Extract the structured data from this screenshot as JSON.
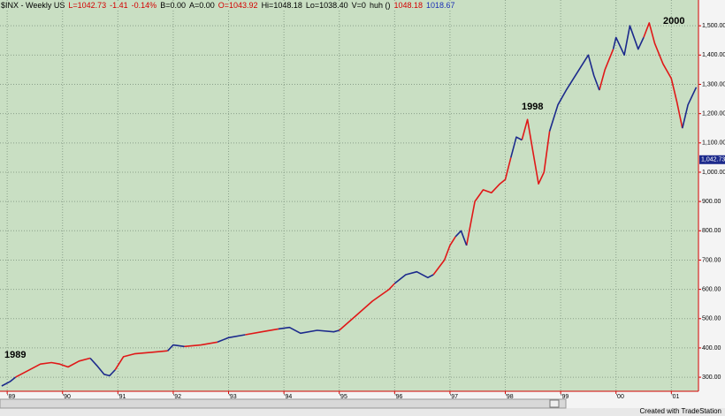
{
  "header": [
    "$INX - Weekly  US",
    "L=1042.73",
    "-1.41",
    "-0.14%",
    "B=0.00",
    "A=0.00",
    "O=1043.92",
    "Hi=1048.18",
    "Lo=1038.40",
    "V=0",
    "huh ()",
    "1048.18",
    "1018.67"
  ],
  "footer": "Created with TradeStation",
  "chart_data": {
    "type": "line",
    "annotations": [
      "1989",
      "1998",
      "2000"
    ],
    "x": [
      1988.9,
      1989.05,
      1989.15,
      1989.4,
      1989.6,
      1989.8,
      1989.95,
      1990.1,
      1990.3,
      1990.5,
      1990.62,
      1990.75,
      1990.85,
      1990.95,
      1991.1,
      1991.3,
      1991.6,
      1991.9,
      1992.0,
      1992.2,
      1992.5,
      1992.8,
      1993.0,
      1993.3,
      1993.6,
      1993.9,
      1994.1,
      1994.3,
      1994.6,
      1994.9,
      1995.0,
      1995.3,
      1995.6,
      1995.9,
      1996.0,
      1996.2,
      1996.4,
      1996.6,
      1996.7,
      1996.9,
      1997.0,
      1997.1,
      1997.2,
      1997.3,
      1997.45,
      1997.6,
      1997.75,
      1997.9,
      1998.0,
      1998.1,
      1998.2,
      1998.3,
      1998.4,
      1998.5,
      1998.6,
      1998.7,
      1998.8,
      1998.95,
      1999.1,
      1999.3,
      1999.5,
      1999.6,
      1999.7,
      1999.8,
      1999.95,
      2000.0,
      2000.15,
      2000.25,
      2000.4,
      2000.5,
      2000.6,
      2000.7,
      2000.85,
      2001.0,
      2001.1,
      2001.2,
      2001.3,
      2001.45
    ],
    "series": [
      {
        "color": "#e01818",
        "values": [
          null,
          null,
          300,
          325,
          345,
          350,
          345,
          335,
          355,
          365,
          null,
          null,
          null,
          325,
          370,
          380,
          385,
          390,
          null,
          405,
          410,
          420,
          null,
          445,
          455,
          465,
          null,
          null,
          null,
          null,
          460,
          510,
          560,
          600,
          620,
          null,
          null,
          null,
          650,
          700,
          750,
          780,
          null,
          750,
          900,
          940,
          930,
          960,
          975,
          1050,
          null,
          1110,
          1180,
          1070,
          960,
          1000,
          1140,
          null,
          null,
          null,
          null,
          null,
          1280,
          1350,
          1420,
          null,
          null,
          null,
          null,
          1460,
          1510,
          1440,
          1370,
          1320,
          1240,
          1150,
          null,
          null
        ]
      },
      {
        "color": "#1c2a8c",
        "values": [
          270,
          285,
          300,
          null,
          null,
          null,
          null,
          null,
          null,
          365,
          340,
          310,
          305,
          325,
          null,
          null,
          null,
          390,
          410,
          405,
          null,
          420,
          435,
          445,
          null,
          465,
          470,
          450,
          460,
          455,
          460,
          null,
          null,
          null,
          620,
          650,
          660,
          640,
          650,
          null,
          null,
          780,
          800,
          750,
          null,
          null,
          null,
          null,
          null,
          1050,
          1120,
          1110,
          null,
          null,
          null,
          null,
          1140,
          1230,
          1280,
          1340,
          1400,
          1330,
          1280,
          null,
          1420,
          1460,
          1400,
          1500,
          1420,
          1460,
          null,
          null,
          null,
          null,
          null,
          1150,
          1230,
          1290
        ]
      }
    ],
    "xlim": [
      1988.87,
      2001.49
    ],
    "xticks": [
      {
        "value": 1989,
        "label": "'89"
      },
      {
        "value": 1990,
        "label": "'90"
      },
      {
        "value": 1991,
        "label": "'91"
      },
      {
        "value": 1992,
        "label": "'92"
      },
      {
        "value": 1993,
        "label": "'93"
      },
      {
        "value": 1994,
        "label": "'94"
      },
      {
        "value": 1995,
        "label": "'95"
      },
      {
        "value": 1996,
        "label": "'96"
      },
      {
        "value": 1997,
        "label": "'97"
      },
      {
        "value": 1998,
        "label": "'98"
      },
      {
        "value": 1999,
        "label": "'99"
      },
      {
        "value": 2000,
        "label": "'00"
      },
      {
        "value": 2001,
        "label": "'01"
      }
    ],
    "ylim": [
      252,
      1588
    ],
    "yticks": [
      {
        "value": 300,
        "label": "300.00"
      },
      {
        "value": 400,
        "label": "400.00"
      },
      {
        "value": 500,
        "label": "500.00"
      },
      {
        "value": 600,
        "label": "600.00"
      },
      {
        "value": 700,
        "label": "700.00"
      },
      {
        "value": 800,
        "label": "800.00"
      },
      {
        "value": 900,
        "label": "900.00"
      },
      {
        "value": 1000,
        "label": "1,000.00"
      },
      {
        "value": 1100,
        "label": "1,100.00"
      },
      {
        "value": 1200,
        "label": "1,200.00"
      },
      {
        "value": 1300,
        "label": "1,300.00"
      },
      {
        "value": 1400,
        "label": "1,400.00"
      },
      {
        "value": 1500,
        "label": "1,500.00"
      }
    ],
    "last_price": {
      "value": 1042.73,
      "label": "1,042.73"
    },
    "grid": true
  }
}
